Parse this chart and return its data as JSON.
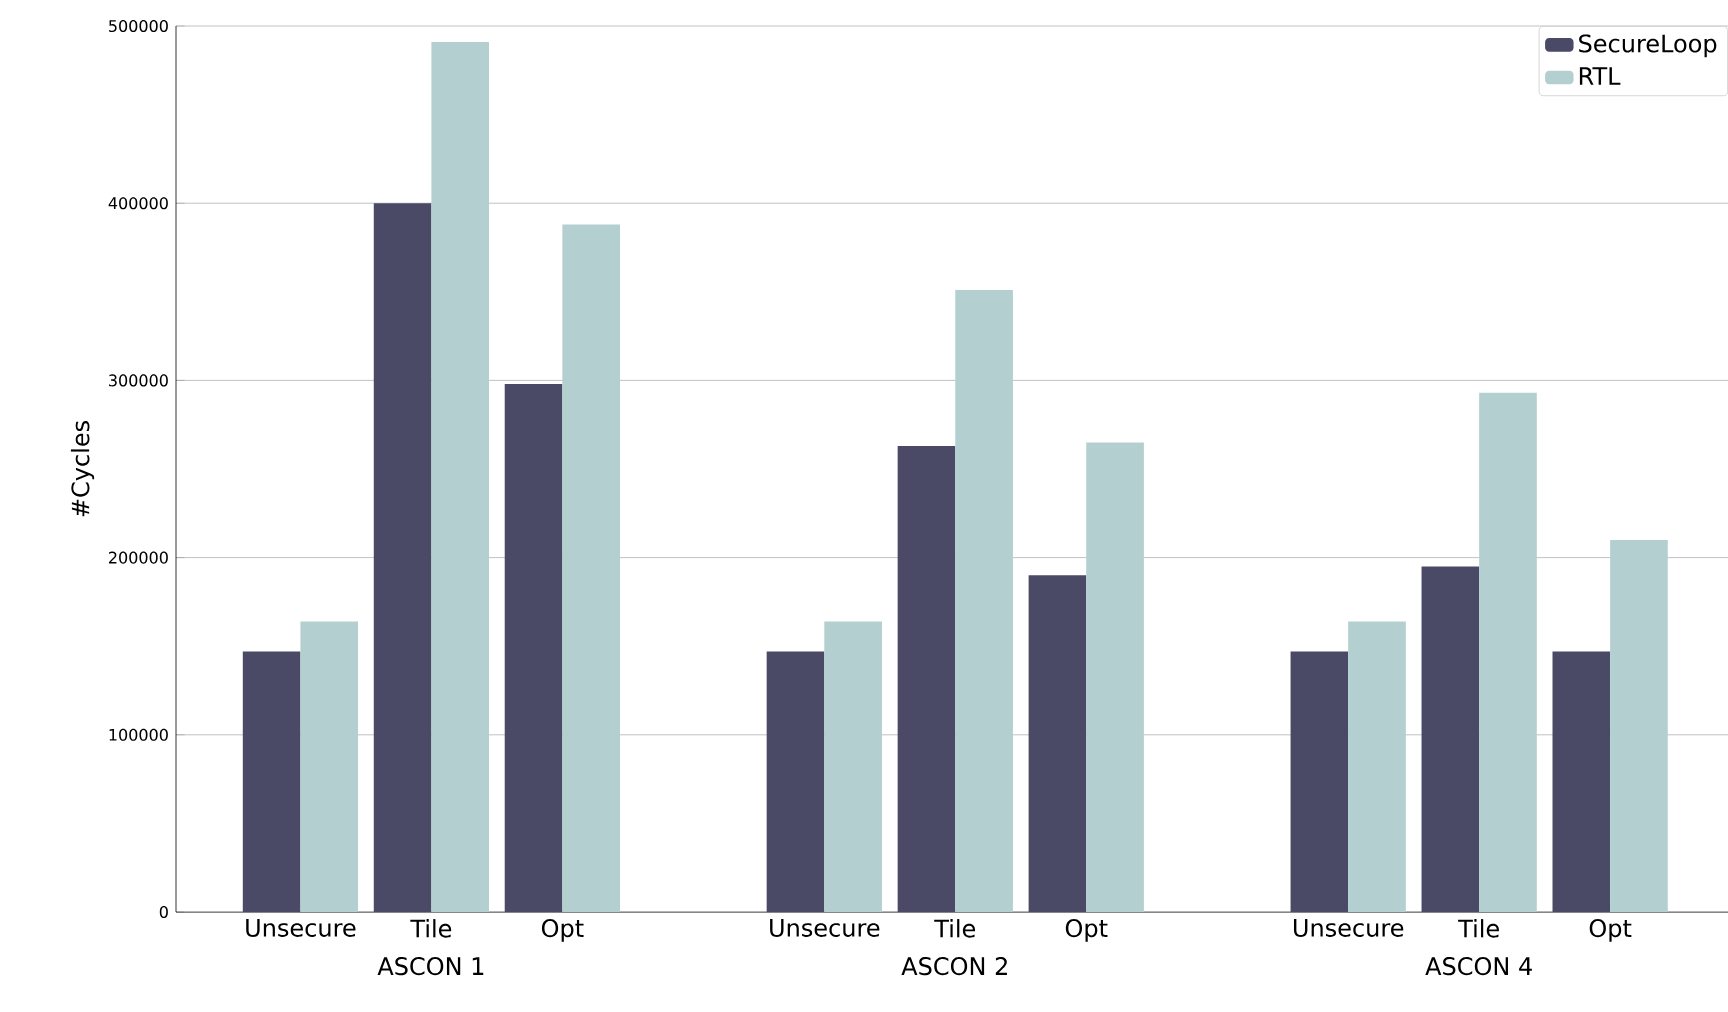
{
  "chart_data": {
    "type": "bar",
    "ylabel": "#Cycles",
    "categories": [
      "Unsecure",
      "Tile",
      "Opt",
      null,
      "Unsecure",
      "Tile",
      "Opt",
      null,
      "Unsecure",
      "Tile",
      "Opt"
    ],
    "series": [
      {
        "name": "SecureLoop",
        "color": "#4a4966",
        "values": [
          147000,
          400000,
          298000,
          null,
          147000,
          263000,
          190000,
          null,
          147000,
          195000,
          147000
        ]
      },
      {
        "name": "RTL",
        "color": "#b3cfd0",
        "values": [
          164000,
          491000,
          388000,
          null,
          164000,
          351000,
          265000,
          null,
          164000,
          293000,
          210000
        ]
      }
    ],
    "annotations": [
      "ASCON 1",
      "ASCON 2",
      "ASCON 4"
    ],
    "ylim": [
      0,
      500000
    ],
    "yticks": [
      0,
      100000,
      200000,
      300000,
      400000,
      500000
    ],
    "grid": "y",
    "legend": "top right"
  }
}
